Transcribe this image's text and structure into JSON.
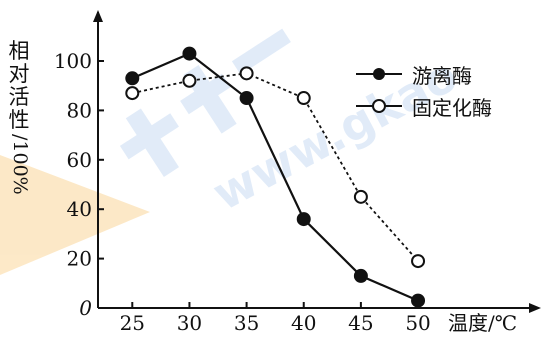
{
  "chart_data": {
    "type": "line",
    "x": [
      25,
      30,
      35,
      40,
      45,
      50
    ],
    "xlim": [
      22,
      53
    ],
    "ylim": [
      0,
      100
    ],
    "y_ticks": [
      0,
      20,
      40,
      60,
      80,
      100
    ],
    "x_ticks": [
      25,
      30,
      35,
      40,
      45,
      50
    ],
    "xlabel": "温度/℃",
    "ylabel": "相对活性/100%",
    "grid": false,
    "legend_position": "top-right",
    "series": [
      {
        "name": "游离酶",
        "values": [
          93,
          103,
          85,
          36,
          13,
          3
        ],
        "marker": "filled-circle",
        "line_style": "solid",
        "color": "#111111"
      },
      {
        "name": "固定化酶",
        "values": [
          87,
          92,
          95,
          85,
          45,
          19
        ],
        "marker": "open-circle",
        "line_style": "dashed",
        "color": "#111111"
      }
    ]
  },
  "y_label_chars": [
    "相",
    "对",
    "活",
    "性"
  ],
  "y_label_rest": "/100%"
}
